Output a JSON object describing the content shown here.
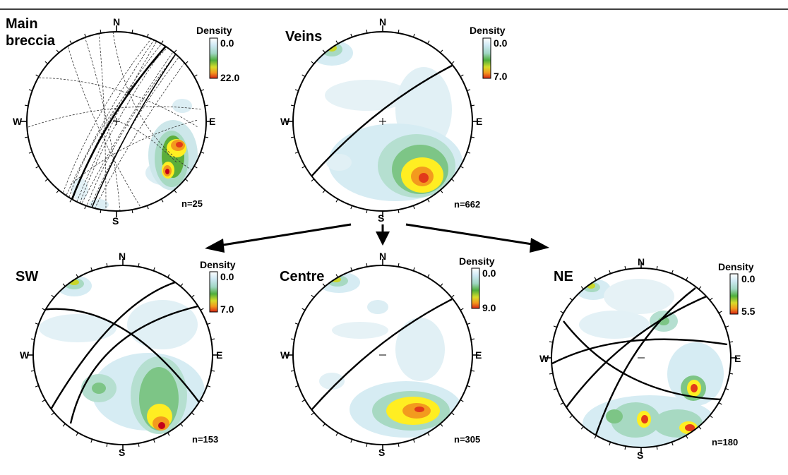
{
  "figure": {
    "panels": [
      {
        "id": "main-breccia",
        "title_lines": [
          "Main",
          "breccia"
        ],
        "compass": {
          "n": "N",
          "s": "S",
          "e": "E",
          "w": "W"
        },
        "count_label": "n=25",
        "legend": {
          "title": "Density",
          "min": "0.0",
          "max": "22.0"
        }
      },
      {
        "id": "veins",
        "title_lines": [
          "Veins"
        ],
        "compass": {
          "n": "N",
          "s": "S",
          "e": "E",
          "w": "W"
        },
        "count_label": "n=662",
        "legend": {
          "title": "Density",
          "min": "0.0",
          "max": "7.0"
        }
      },
      {
        "id": "sw",
        "title_lines": [
          "SW"
        ],
        "compass": {
          "n": "N",
          "s": "S",
          "e": "E",
          "w": "W"
        },
        "count_label": "n=153",
        "legend": {
          "title": "Density",
          "min": "0.0",
          "max": "7.0"
        }
      },
      {
        "id": "centre",
        "title_lines": [
          "Centre"
        ],
        "compass": {
          "n": "N",
          "s": "S",
          "e": "E",
          "w": "W"
        },
        "count_label": "n=305",
        "legend": {
          "title": "Density",
          "min": "0.0",
          "max": "9.0"
        }
      },
      {
        "id": "ne",
        "title_lines": [
          "NE"
        ],
        "compass": {
          "n": "N",
          "s": "S",
          "e": "E",
          "w": "W"
        },
        "count_label": "n=180",
        "legend": {
          "title": "Density",
          "min": "0.0",
          "max": "5.5"
        }
      }
    ],
    "colors": {
      "density_scale": [
        "#ffffff",
        "#d6ecf3",
        "#a7d9d0",
        "#7dc586",
        "#5cae3a",
        "#c9d62a",
        "#ffee22",
        "#f39a1e",
        "#e23a1a",
        "#a0001a"
      ],
      "line": "#000000"
    }
  }
}
